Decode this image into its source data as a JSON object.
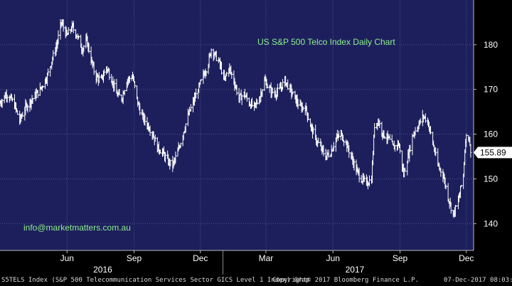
{
  "colors": {
    "background": "#1d1f5c",
    "grid": "#4a5486",
    "bars": "#ffffff",
    "title": "#8cf08c",
    "email": "#8cf08c",
    "axis_text": "#ffffff",
    "last_label_bg": "#ffffff",
    "last_label_text": "#000000"
  },
  "chart_data": {
    "type": "bar",
    "subtype": "ohlc",
    "title": "US S&P 500 Telco Index Daily Chart",
    "annotation": "info@marketmatters.com.au",
    "y_ticks": [
      140,
      150,
      160,
      170,
      180
    ],
    "ylim": [
      134,
      190
    ],
    "last_value": "155.89",
    "x_ticks": [
      {
        "label": "Jun",
        "date": "2016-06-01"
      },
      {
        "label": "Sep",
        "date": "2016-09-01"
      },
      {
        "label": "Dec",
        "date": "2016-12-01"
      },
      {
        "label": "Mar",
        "date": "2017-03-01"
      },
      {
        "label": "Jun",
        "date": "2017-06-01"
      },
      {
        "label": "Sep",
        "date": "2017-09-01"
      },
      {
        "label": "Dec",
        "date": "2017-12-01"
      }
    ],
    "x_years": [
      {
        "label": "2016",
        "date": "2016-07-20"
      },
      {
        "label": "2017",
        "date": "2017-07-01"
      }
    ],
    "xlim": [
      "2016-03-01",
      "2017-12-11"
    ],
    "close_series": [
      [
        "2016-03-01",
        167
      ],
      [
        "2016-03-10",
        169
      ],
      [
        "2016-03-20",
        167
      ],
      [
        "2016-03-28",
        163
      ],
      [
        "2016-04-05",
        166
      ],
      [
        "2016-04-15",
        168
      ],
      [
        "2016-04-25",
        170
      ],
      [
        "2016-05-05",
        173
      ],
      [
        "2016-05-12",
        177
      ],
      [
        "2016-05-18",
        180
      ],
      [
        "2016-05-24",
        185
      ],
      [
        "2016-06-01",
        182
      ],
      [
        "2016-06-08",
        184
      ],
      [
        "2016-06-15",
        182
      ],
      [
        "2016-06-22",
        179
      ],
      [
        "2016-06-28",
        181
      ],
      [
        "2016-07-05",
        176
      ],
      [
        "2016-07-10",
        173
      ],
      [
        "2016-07-18",
        172
      ],
      [
        "2016-07-25",
        175
      ],
      [
        "2016-08-02",
        172
      ],
      [
        "2016-08-08",
        169
      ],
      [
        "2016-08-15",
        168
      ],
      [
        "2016-08-22",
        172
      ],
      [
        "2016-08-30",
        173
      ],
      [
        "2016-09-06",
        167
      ],
      [
        "2016-09-12",
        164
      ],
      [
        "2016-09-20",
        162
      ],
      [
        "2016-09-27",
        160
      ],
      [
        "2016-10-03",
        157
      ],
      [
        "2016-10-10",
        156
      ],
      [
        "2016-10-17",
        154
      ],
      [
        "2016-10-24",
        153
      ],
      [
        "2016-10-31",
        156
      ],
      [
        "2016-11-07",
        160
      ],
      [
        "2016-11-14",
        164
      ],
      [
        "2016-11-21",
        167
      ],
      [
        "2016-11-28",
        170
      ],
      [
        "2016-12-05",
        173
      ],
      [
        "2016-12-12",
        176
      ],
      [
        "2016-12-16",
        179
      ],
      [
        "2016-12-20",
        178
      ],
      [
        "2016-12-27",
        176
      ],
      [
        "2017-01-03",
        172
      ],
      [
        "2017-01-09",
        175
      ],
      [
        "2017-01-16",
        172
      ],
      [
        "2017-01-23",
        168
      ],
      [
        "2017-01-30",
        169
      ],
      [
        "2017-02-06",
        167
      ],
      [
        "2017-02-13",
        166
      ],
      [
        "2017-02-20",
        168
      ],
      [
        "2017-02-27",
        172
      ],
      [
        "2017-03-06",
        170
      ],
      [
        "2017-03-13",
        169
      ],
      [
        "2017-03-20",
        170
      ],
      [
        "2017-03-27",
        172
      ],
      [
        "2017-04-03",
        170
      ],
      [
        "2017-04-10",
        168
      ],
      [
        "2017-04-17",
        166
      ],
      [
        "2017-04-24",
        166
      ],
      [
        "2017-05-01",
        162
      ],
      [
        "2017-05-08",
        159
      ],
      [
        "2017-05-15",
        157
      ],
      [
        "2017-05-22",
        155
      ],
      [
        "2017-05-29",
        156
      ],
      [
        "2017-06-05",
        159
      ],
      [
        "2017-06-12",
        160
      ],
      [
        "2017-06-19",
        158
      ],
      [
        "2017-06-26",
        155
      ],
      [
        "2017-07-03",
        152
      ],
      [
        "2017-07-10",
        150
      ],
      [
        "2017-07-17",
        149
      ],
      [
        "2017-07-24",
        150
      ],
      [
        "2017-07-28",
        162
      ],
      [
        "2017-08-02",
        163
      ],
      [
        "2017-08-09",
        160
      ],
      [
        "2017-08-16",
        159
      ],
      [
        "2017-08-23",
        157
      ],
      [
        "2017-08-30",
        158
      ],
      [
        "2017-09-06",
        151
      ],
      [
        "2017-09-12",
        155
      ],
      [
        "2017-09-19",
        160
      ],
      [
        "2017-09-26",
        162
      ],
      [
        "2017-10-03",
        164
      ],
      [
        "2017-10-09",
        163
      ],
      [
        "2017-10-16",
        158
      ],
      [
        "2017-10-23",
        153
      ],
      [
        "2017-10-30",
        151
      ],
      [
        "2017-11-06",
        146
      ],
      [
        "2017-11-13",
        142
      ],
      [
        "2017-11-20",
        145
      ],
      [
        "2017-11-27",
        151
      ],
      [
        "2017-11-30",
        159
      ],
      [
        "2017-12-04",
        160
      ],
      [
        "2017-12-07",
        155.89
      ]
    ]
  },
  "footer": {
    "left": "S5TELS Index (S&P 500 Telecommunication Services Sector GICS Level 1 Index) Grap",
    "center": "Copyright© 2017 Bloomberg Finance L.P.",
    "right": "07-Dec-2017 08:03:31"
  }
}
